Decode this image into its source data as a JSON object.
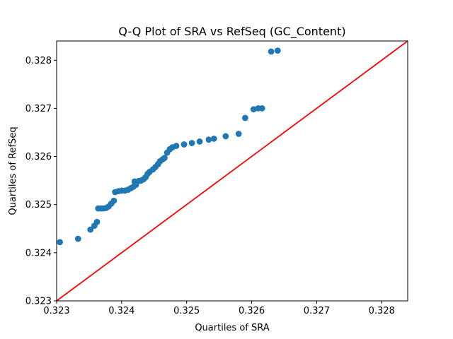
{
  "chart_data": {
    "type": "scatter",
    "title": "Q-Q Plot of SRA vs RefSeq (GC_Content)",
    "xlabel": "Quartiles of SRA",
    "ylabel": "Quartiles of RefSeq",
    "xlim": [
      0.323,
      0.3284
    ],
    "ylim": [
      0.323,
      0.3284
    ],
    "xticks": [
      "0.323",
      "0.324",
      "0.325",
      "0.326",
      "0.327",
      "0.328"
    ],
    "yticks": [
      "0.323",
      "0.324",
      "0.325",
      "0.326",
      "0.327",
      "0.328"
    ],
    "grid": false,
    "marker_color": "#1f77b4",
    "reference_line_color": "#ff0000",
    "reference_line": {
      "from": [
        0.323,
        0.323
      ],
      "to": [
        0.3284,
        0.3284
      ]
    },
    "points": [
      [
        0.32305,
        0.32422
      ],
      [
        0.32333,
        0.32429
      ],
      [
        0.32352,
        0.32448
      ],
      [
        0.32358,
        0.32456
      ],
      [
        0.32362,
        0.32464
      ],
      [
        0.32364,
        0.32492
      ],
      [
        0.32368,
        0.32492
      ],
      [
        0.32372,
        0.32492
      ],
      [
        0.32376,
        0.32493
      ],
      [
        0.3238,
        0.32496
      ],
      [
        0.32384,
        0.32502
      ],
      [
        0.32388,
        0.32508
      ],
      [
        0.3239,
        0.32526
      ],
      [
        0.32395,
        0.32528
      ],
      [
        0.324,
        0.32529
      ],
      [
        0.32405,
        0.32529
      ],
      [
        0.3241,
        0.32531
      ],
      [
        0.32414,
        0.32534
      ],
      [
        0.32418,
        0.32537
      ],
      [
        0.32422,
        0.32541
      ],
      [
        0.3242,
        0.32548
      ],
      [
        0.32426,
        0.32549
      ],
      [
        0.3243,
        0.3255
      ],
      [
        0.32434,
        0.32553
      ],
      [
        0.32437,
        0.32557
      ],
      [
        0.3244,
        0.32564
      ],
      [
        0.32443,
        0.32568
      ],
      [
        0.32448,
        0.32573
      ],
      [
        0.32452,
        0.32578
      ],
      [
        0.32456,
        0.32584
      ],
      [
        0.32459,
        0.3259
      ],
      [
        0.32463,
        0.32594
      ],
      [
        0.32466,
        0.32597
      ],
      [
        0.3247,
        0.32608
      ],
      [
        0.32474,
        0.32615
      ],
      [
        0.32478,
        0.32619
      ],
      [
        0.32484,
        0.32622
      ],
      [
        0.32496,
        0.32625
      ],
      [
        0.32508,
        0.32628
      ],
      [
        0.3252,
        0.32631
      ],
      [
        0.32534,
        0.32635
      ],
      [
        0.32542,
        0.32637
      ],
      [
        0.3256,
        0.32642
      ],
      [
        0.3258,
        0.32647
      ],
      [
        0.3259,
        0.3268
      ],
      [
        0.32603,
        0.32698
      ],
      [
        0.3261,
        0.327
      ],
      [
        0.32616,
        0.327
      ],
      [
        0.3263,
        0.32818
      ],
      [
        0.3264,
        0.3282
      ]
    ]
  }
}
